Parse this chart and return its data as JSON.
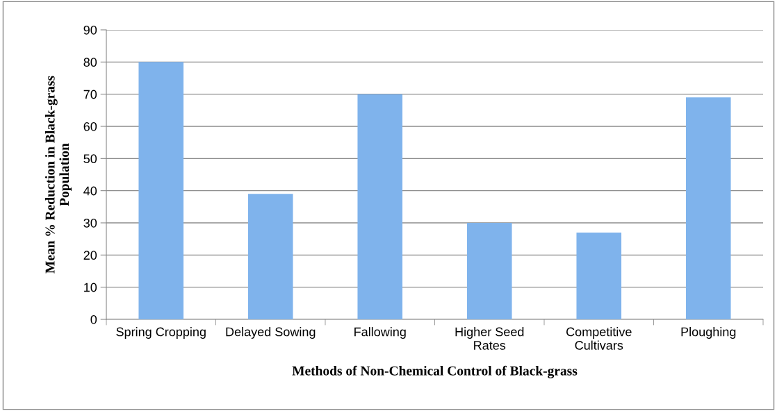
{
  "chart_data": {
    "type": "bar",
    "xlabel": "Methods of Non-Chemical Control of Black-grass",
    "ylabel": "Mean % Reduction in Black-grass\nPopulation",
    "categories": [
      "Spring Cropping",
      "Delayed Sowing",
      "Fallowing",
      "Higher Seed\nRates",
      "Competitive\nCultivars",
      "Ploughing"
    ],
    "values": [
      80,
      39,
      70,
      30,
      27,
      69
    ],
    "color": "#7fb3ec",
    "ylim": [
      0,
      90
    ],
    "yticks": [
      0,
      10,
      20,
      30,
      40,
      50,
      60,
      70,
      80,
      90
    ],
    "grid": "y",
    "legend": false
  }
}
